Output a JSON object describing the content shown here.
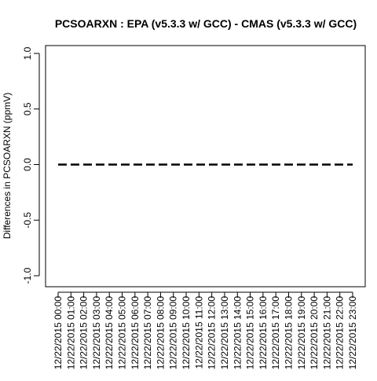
{
  "chart_data": {
    "type": "line",
    "title": "PCSOARXN : EPA (v5.3.3 w/ GCC) - CMAS (v5.3.3 w/ GCC)",
    "xlabel": "",
    "ylabel": "Differences in PCSOARXN (ppmV)",
    "ylim": [
      -1.0,
      1.0
    ],
    "yticks": [
      -1.0,
      -0.5,
      0.0,
      0.5,
      1.0
    ],
    "ytick_labels": [
      "-1.0",
      "-0.5",
      "0.0",
      "0.5",
      "1.0"
    ],
    "grid": false,
    "line_style": "dashed",
    "categories": [
      "12/22/2015 00:00",
      "12/22/2015 01:00",
      "12/22/2015 02:00",
      "12/22/2015 03:00",
      "12/22/2015 04:00",
      "12/22/2015 05:00",
      "12/22/2015 06:00",
      "12/22/2015 07:00",
      "12/22/2015 08:00",
      "12/22/2015 09:00",
      "12/22/2015 10:00",
      "12/22/2015 11:00",
      "12/22/2015 12:00",
      "12/22/2015 13:00",
      "12/22/2015 14:00",
      "12/22/2015 15:00",
      "12/22/2015 16:00",
      "12/22/2015 17:00",
      "12/22/2015 18:00",
      "12/22/2015 19:00",
      "12/22/2015 20:00",
      "12/22/2015 21:00",
      "12/22/2015 22:00",
      "12/22/2015 23:00"
    ],
    "series": [
      {
        "color": "#000000",
        "values": [
          0,
          0,
          0,
          0,
          0,
          0,
          0,
          0,
          0,
          0,
          0,
          0,
          0,
          0,
          0,
          0,
          0,
          0,
          0,
          0,
          0,
          0,
          0,
          0
        ]
      }
    ]
  }
}
